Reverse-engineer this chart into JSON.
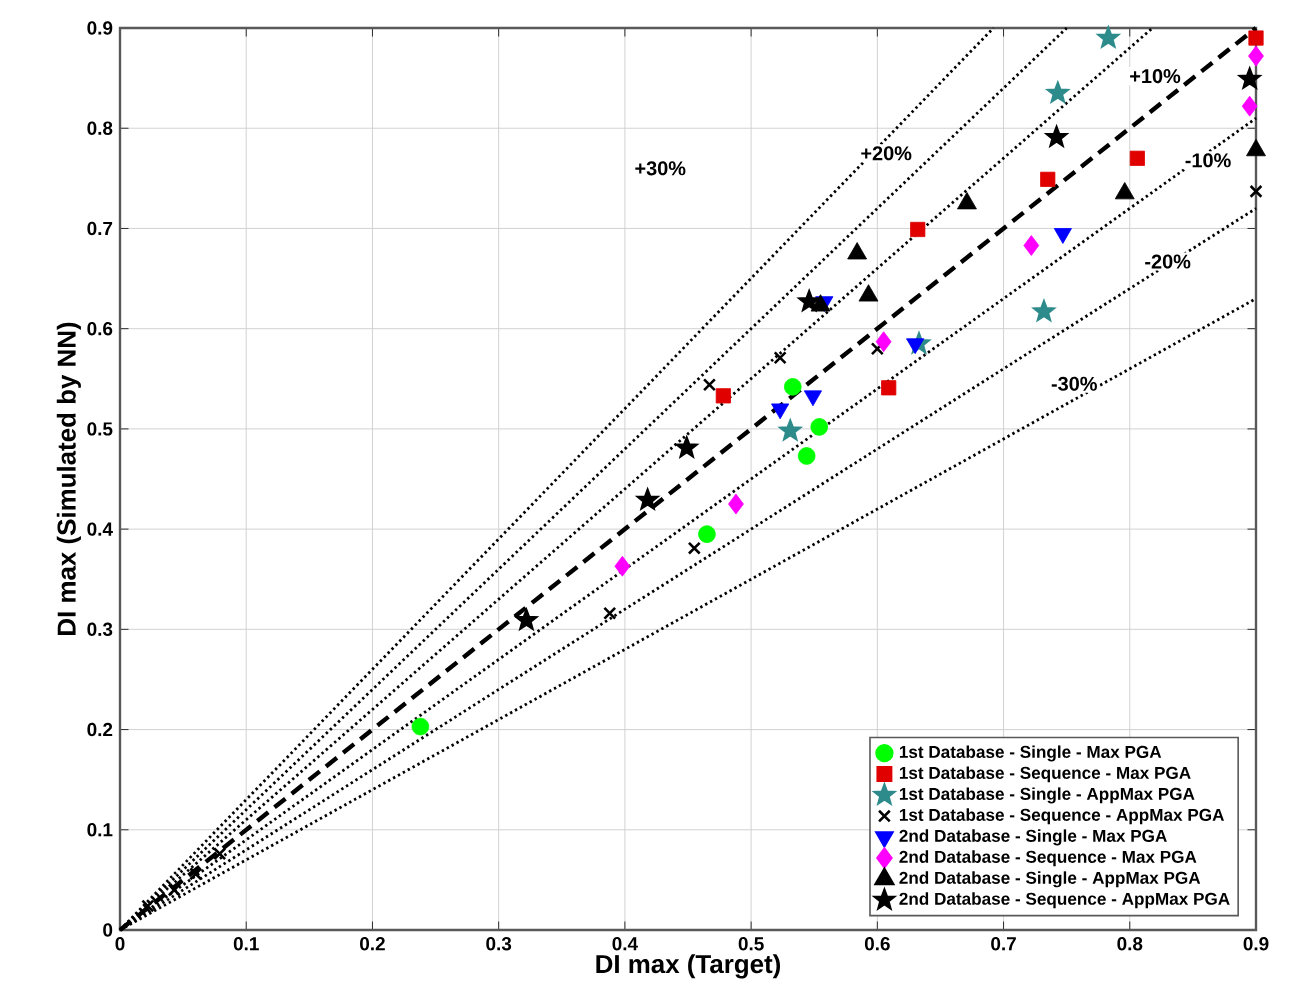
{
  "chart_data": {
    "type": "scatter",
    "xlabel": "DI max (Target)",
    "ylabel": "DI max (Simulated by NN)",
    "xlim": [
      0,
      0.9
    ],
    "ylim": [
      0,
      0.9
    ],
    "xticks": [
      0,
      0.1,
      0.2,
      0.3,
      0.4,
      0.5,
      0.6,
      0.7,
      0.8,
      0.9
    ],
    "yticks": [
      0,
      0.1,
      0.2,
      0.3,
      0.4,
      0.5,
      0.6,
      0.7,
      0.8,
      0.9
    ],
    "grid": true,
    "legend": "bottom right",
    "series": [
      {
        "type": "line",
        "color": "#000000",
        "line_style": "dashed",
        "marker": "none",
        "x": [
          0,
          0.9
        ],
        "values": [
          0,
          0.9
        ]
      },
      {
        "type": "line",
        "color": "#000000",
        "line_style": "dotted",
        "marker": "none",
        "x": [
          0,
          0.818
        ],
        "values": [
          0,
          0.9
        ]
      },
      {
        "type": "line",
        "color": "#000000",
        "line_style": "dotted",
        "marker": "none",
        "x": [
          0,
          0.75
        ],
        "values": [
          0,
          0.9
        ]
      },
      {
        "type": "line",
        "color": "#000000",
        "line_style": "dotted",
        "marker": "none",
        "x": [
          0,
          0.692
        ],
        "values": [
          0,
          0.9
        ]
      },
      {
        "type": "line",
        "color": "#000000",
        "line_style": "dotted",
        "marker": "none",
        "x": [
          0,
          0.9
        ],
        "values": [
          0,
          0.81
        ]
      },
      {
        "type": "line",
        "color": "#000000",
        "line_style": "dotted",
        "marker": "none",
        "x": [
          0,
          0.9
        ],
        "values": [
          0,
          0.72
        ]
      },
      {
        "type": "line",
        "color": "#000000",
        "line_style": "dotted",
        "marker": "none",
        "x": [
          0,
          0.9
        ],
        "values": [
          0,
          0.63
        ]
      },
      {
        "name": "1st Database - Single - Max PGA",
        "color": "#00ff00",
        "marker": "circle",
        "x": [
          0.238,
          0.465,
          0.533,
          0.554,
          0.544
        ],
        "values": [
          0.203,
          0.395,
          0.542,
          0.502,
          0.473
        ]
      },
      {
        "name": "1st Database - Sequence - Max PGA",
        "color": "#e00000",
        "marker": "square",
        "x": [
          0.478,
          0.609,
          0.632,
          0.735,
          0.806,
          0.9
        ],
        "values": [
          0.533,
          0.541,
          0.699,
          0.749,
          0.77,
          0.89
        ]
      },
      {
        "name": "1st Database - Single - AppMax PGA",
        "color": "#2e8b8b",
        "marker": "star",
        "x": [
          0.783,
          0.743,
          0.732,
          0.633,
          0.531
        ],
        "values": [
          0.89,
          0.835,
          0.617,
          0.585,
          0.498
        ]
      },
      {
        "name": "1st Database - Sequence - AppMax PGA",
        "color": "#000000",
        "marker": "cross",
        "x": [
          0.022,
          0.043,
          0.06,
          0.079,
          0.388,
          0.455,
          0.467,
          0.523,
          0.6,
          0.9
        ],
        "values": [
          0.024,
          0.04,
          0.056,
          0.076,
          0.316,
          0.381,
          0.544,
          0.571,
          0.58,
          0.737
        ]
      },
      {
        "name": "2nd Database - Single - Max PGA",
        "color": "#0000ff",
        "marker": "triangle-down",
        "x": [
          0.523,
          0.549,
          0.558,
          0.63,
          0.747
        ],
        "values": [
          0.52,
          0.533,
          0.627,
          0.585,
          0.695
        ]
      },
      {
        "name": "2nd Database - Sequence - Max PGA",
        "color": "#ff00ff",
        "marker": "diamond",
        "x": [
          0.398,
          0.488,
          0.605,
          0.722,
          0.895,
          0.9
        ],
        "values": [
          0.363,
          0.425,
          0.587,
          0.683,
          0.822,
          0.872
        ]
      },
      {
        "name": "2nd Database - Single - AppMax PGA",
        "color": "#000000",
        "marker": "triangle",
        "x": [
          0.555,
          0.593,
          0.584,
          0.671,
          0.796,
          0.9
        ],
        "values": [
          0.623,
          0.633,
          0.675,
          0.725,
          0.735,
          0.778
        ]
      },
      {
        "name": "2nd Database - Sequence - AppMax PGA",
        "color": "#000000",
        "marker": "star",
        "x": [
          0.322,
          0.418,
          0.449,
          0.546,
          0.742,
          0.895
        ],
        "values": [
          0.309,
          0.429,
          0.481,
          0.627,
          0.791,
          0.849
        ]
      }
    ],
    "annotations": [
      {
        "text": "+30%",
        "x": 0.428,
        "y": 0.76
      },
      {
        "text": "+20%",
        "x": 0.607,
        "y": 0.775
      },
      {
        "text": "+10%",
        "x": 0.82,
        "y": 0.852
      },
      {
        "text": "-10%",
        "x": 0.862,
        "y": 0.768
      },
      {
        "text": "-20%",
        "x": 0.83,
        "y": 0.667
      },
      {
        "text": "-30%",
        "x": 0.756,
        "y": 0.545
      }
    ]
  }
}
